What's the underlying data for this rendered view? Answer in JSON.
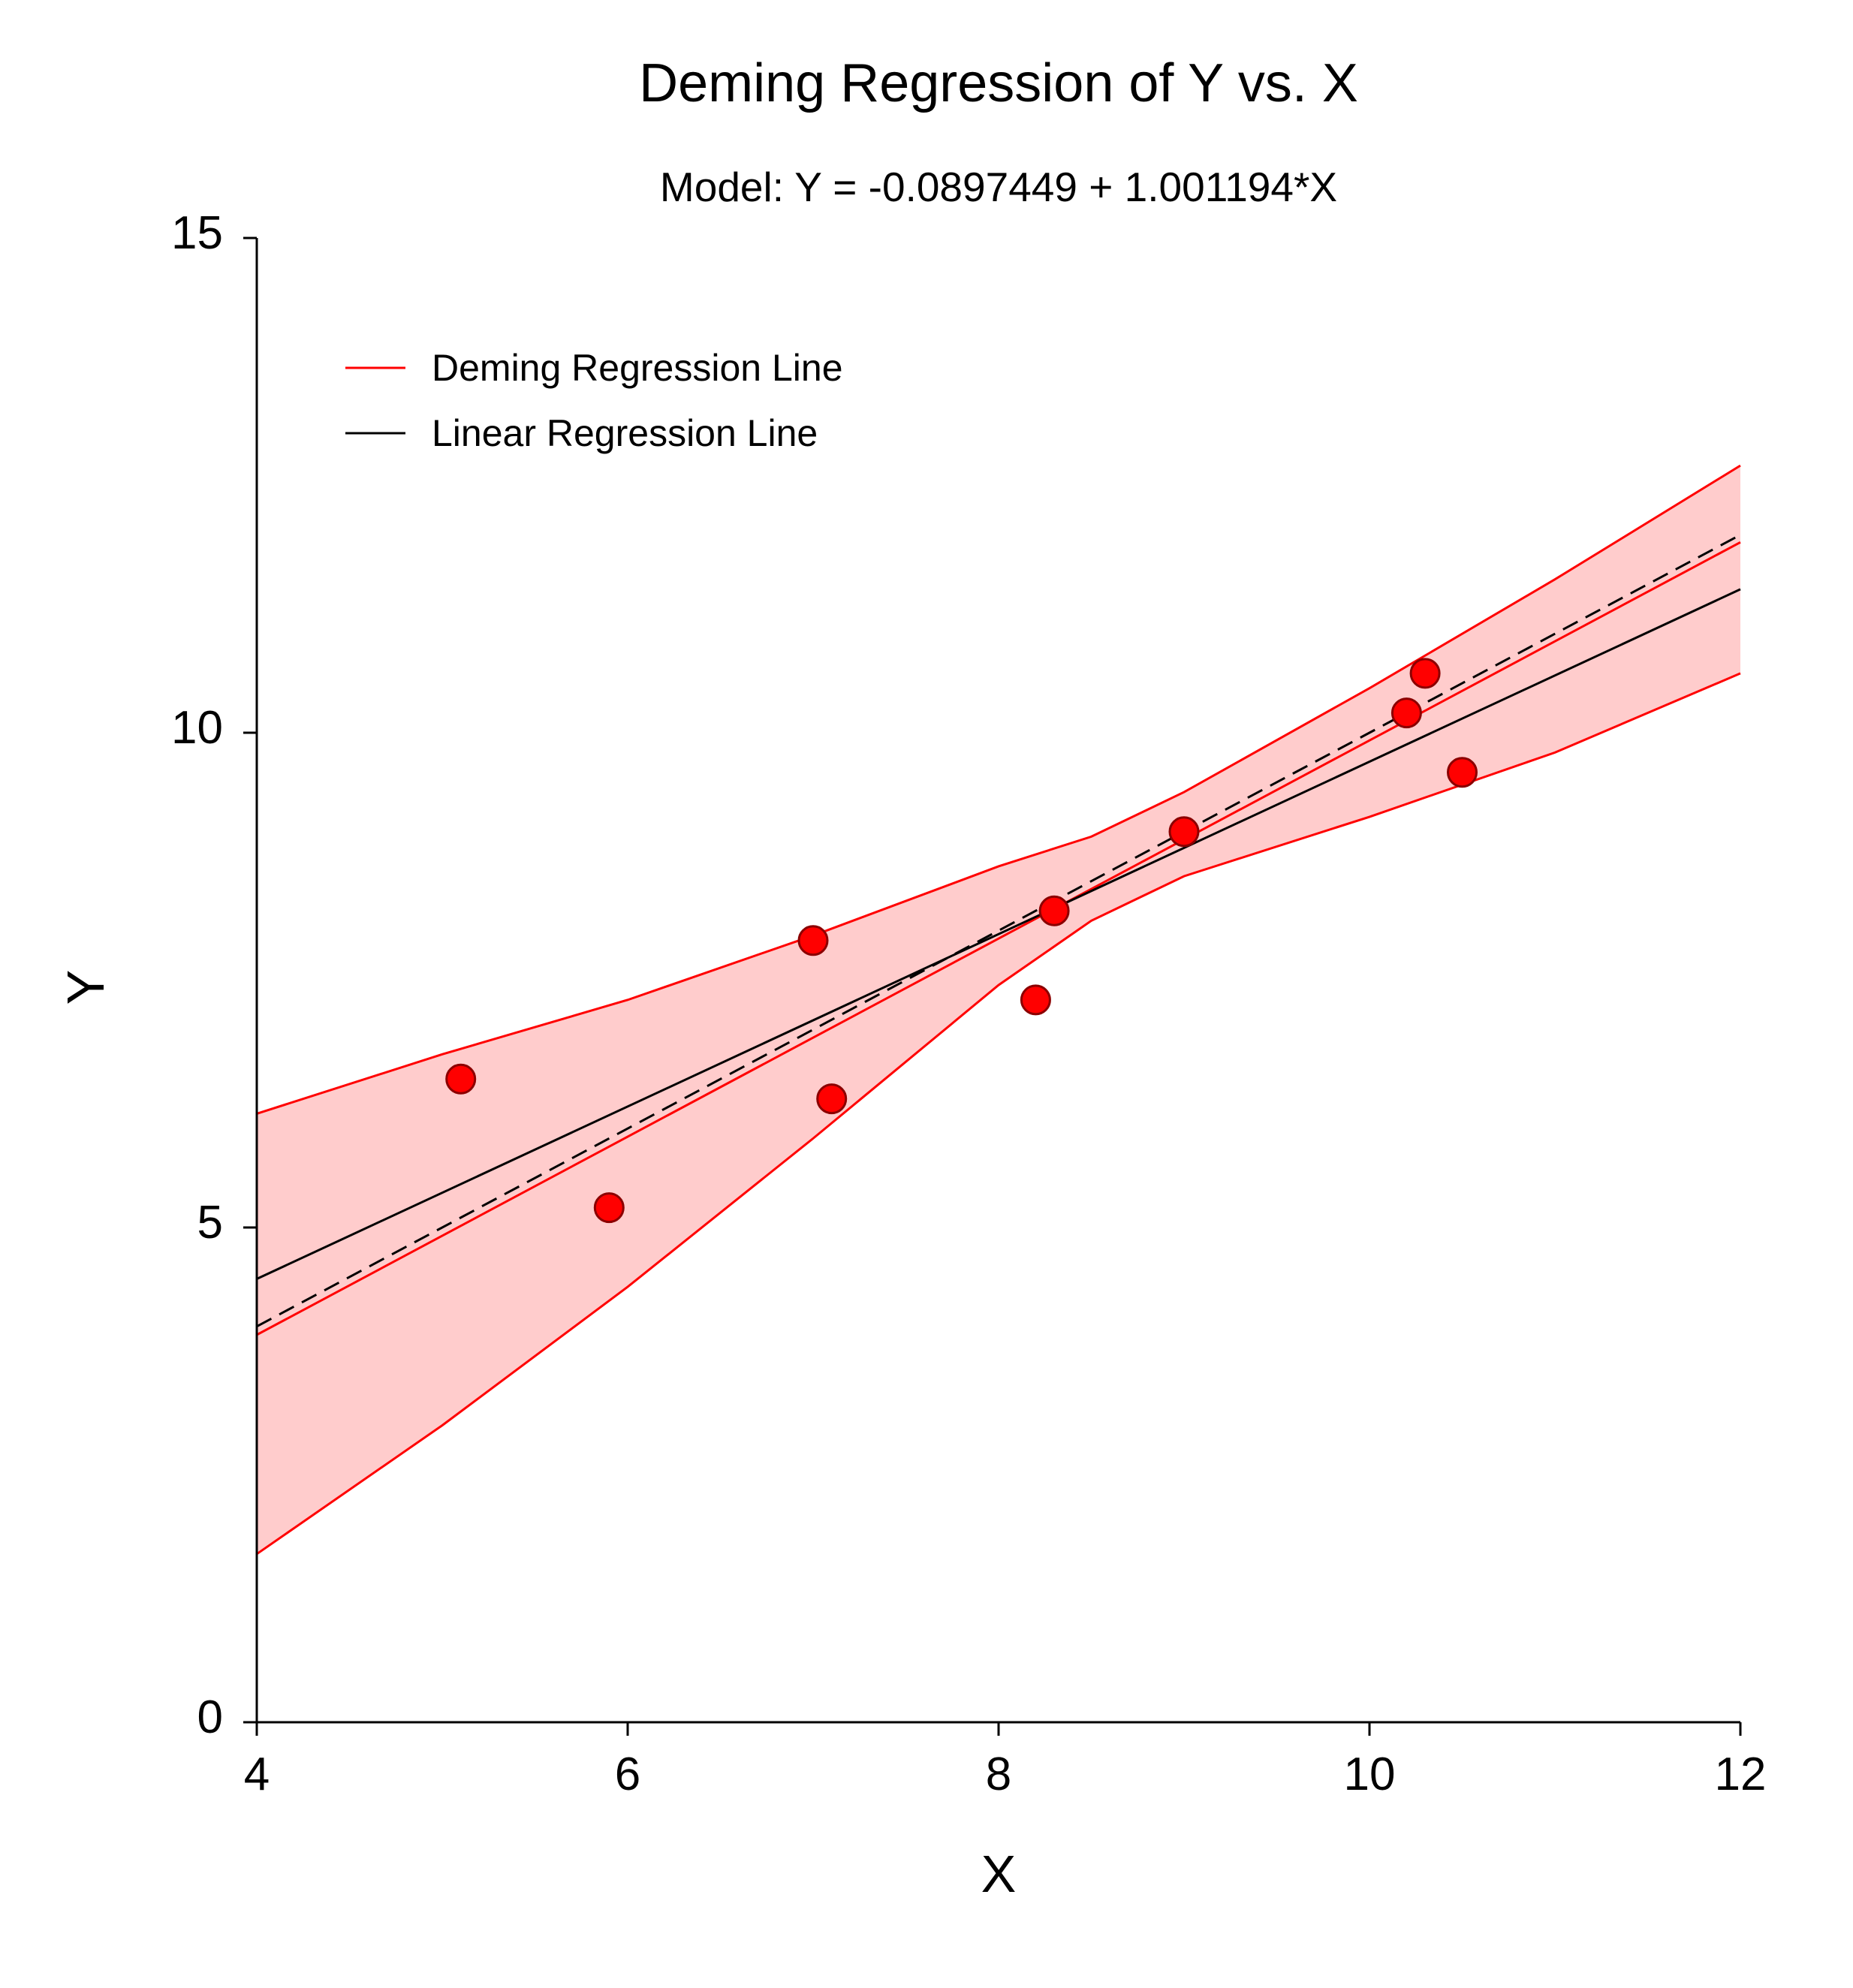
{
  "chart_data": {
    "type": "scatter",
    "title": "Deming Regression of Y vs. X",
    "subtitle": "Model: Y = -0.0897449 + 1.001194*X",
    "xlabel": "X",
    "ylabel": "Y",
    "xlim": [
      4,
      12
    ],
    "ylim": [
      0,
      15
    ],
    "xticks": [
      4,
      6,
      8,
      10,
      12
    ],
    "yticks": [
      0,
      5,
      10,
      15
    ],
    "xtick_labels": [
      "4",
      "6",
      "8",
      "10",
      "12"
    ],
    "ytick_labels": [
      "0",
      "5",
      "10",
      "15"
    ],
    "grid": false,
    "legend_position": "top-left",
    "legend": [
      {
        "label": "Deming Regression Line",
        "color": "#ff0000"
      },
      {
        "label": "Linear Regression Line",
        "color": "#000000"
      }
    ],
    "points": {
      "x": [
        5.1,
        5.9,
        7.0,
        7.1,
        8.2,
        8.3,
        9.0,
        10.2,
        10.3,
        10.5
      ],
      "y": [
        6.5,
        5.2,
        7.9,
        6.3,
        7.3,
        8.2,
        9.0,
        10.2,
        10.6,
        9.6
      ],
      "fill_color": "#ff0000",
      "edge_color": "#8b0000"
    },
    "series": [
      {
        "name": "Deming Regression Line",
        "x": [
          4,
          12
        ],
        "y": [
          3.915,
          11.925
        ],
        "color": "#ff0000",
        "style": "solid"
      },
      {
        "name": "Linear Regression Line",
        "x": [
          4,
          12
        ],
        "y": [
          4.48,
          11.45
        ],
        "color": "#000000",
        "style": "solid"
      },
      {
        "name": "Identity Line",
        "x": [
          4,
          12
        ],
        "y": [
          4.0,
          12.0
        ],
        "color": "#000000",
        "style": "dashed"
      }
    ],
    "confidence_band": {
      "color": "#ff0000",
      "fill_color": "#ffcccc",
      "x": [
        4.0,
        5.0,
        6.0,
        7.0,
        8.0,
        8.5,
        9.0,
        10.0,
        11.0,
        12.0
      ],
      "lower": [
        1.7,
        3.0,
        4.4,
        5.9,
        7.45,
        8.1,
        8.55,
        9.15,
        9.8,
        10.6
      ],
      "upper": [
        6.15,
        6.75,
        7.3,
        7.95,
        8.65,
        8.95,
        9.4,
        10.45,
        11.55,
        12.7
      ]
    }
  }
}
